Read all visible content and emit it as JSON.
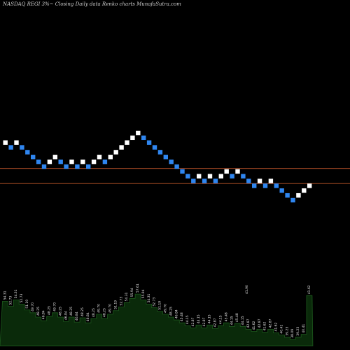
{
  "title": "NASDAQ REGI 3%~ Closing Daily data Renko charts MunafaSutra.com",
  "colors": {
    "background": "#000000",
    "up_brick": "#ffffff",
    "down_brick": "#2f86f0",
    "level_line": "#c0562a",
    "volume_fill": "#0a2a0a",
    "volume_stroke": "#1d5a1d"
  },
  "chart_data": [
    {
      "type": "renko",
      "title": "NASDAQ REGI 3%~ Closing Daily data Renko charts MunafaSutra.com",
      "bricks": [
        {
          "level": 54.31,
          "dir": "up"
        },
        {
          "level": 52.73,
          "dir": "down"
        },
        {
          "level": 54.31,
          "dir": "up"
        },
        {
          "level": 52.73,
          "dir": "down"
        },
        {
          "level": 51.19,
          "dir": "down"
        },
        {
          "level": 49.7,
          "dir": "down"
        },
        {
          "level": 48.25,
          "dir": "down"
        },
        {
          "level": 46.84,
          "dir": "down"
        },
        {
          "level": 48.25,
          "dir": "up"
        },
        {
          "level": 49.7,
          "dir": "up"
        },
        {
          "level": 48.25,
          "dir": "down"
        },
        {
          "level": 46.84,
          "dir": "down"
        },
        {
          "level": 48.25,
          "dir": "up"
        },
        {
          "level": 46.84,
          "dir": "down"
        },
        {
          "level": 48.25,
          "dir": "up"
        },
        {
          "level": 46.84,
          "dir": "down"
        },
        {
          "level": 48.25,
          "dir": "up"
        },
        {
          "level": 49.7,
          "dir": "up"
        },
        {
          "level": 48.25,
          "dir": "down"
        },
        {
          "level": 49.7,
          "dir": "up"
        },
        {
          "level": 51.19,
          "dir": "up"
        },
        {
          "level": 52.73,
          "dir": "up"
        },
        {
          "level": 54.31,
          "dir": "up"
        },
        {
          "level": 55.94,
          "dir": "up"
        },
        {
          "level": 57.61,
          "dir": "up"
        },
        {
          "level": 55.94,
          "dir": "down"
        },
        {
          "level": 54.31,
          "dir": "down"
        },
        {
          "level": 52.73,
          "dir": "down"
        },
        {
          "level": 51.19,
          "dir": "down"
        },
        {
          "level": 49.7,
          "dir": "down"
        },
        {
          "level": 48.25,
          "dir": "down"
        },
        {
          "level": 46.84,
          "dir": "down"
        },
        {
          "level": 45.48,
          "dir": "down"
        },
        {
          "level": 44.15,
          "dir": "down"
        },
        {
          "level": 42.87,
          "dir": "down"
        },
        {
          "level": 44.15,
          "dir": "up"
        },
        {
          "level": 42.87,
          "dir": "down"
        },
        {
          "level": 44.15,
          "dir": "up"
        },
        {
          "level": 42.87,
          "dir": "down"
        },
        {
          "level": 44.15,
          "dir": "up"
        },
        {
          "level": 45.48,
          "dir": "up"
        },
        {
          "level": 44.15,
          "dir": "down"
        },
        {
          "level": 45.48,
          "dir": "up"
        },
        {
          "level": 44.15,
          "dir": "down"
        },
        {
          "level": 42.87,
          "dir": "down"
        },
        {
          "level": 41.62,
          "dir": "down"
        },
        {
          "level": 42.87,
          "dir": "up"
        },
        {
          "level": 41.62,
          "dir": "down"
        },
        {
          "level": 42.87,
          "dir": "up"
        },
        {
          "level": 41.62,
          "dir": "down"
        },
        {
          "level": 40.41,
          "dir": "down"
        },
        {
          "level": 39.23,
          "dir": "down"
        },
        {
          "level": 38.09,
          "dir": "down"
        },
        {
          "level": 39.23,
          "dir": "up"
        },
        {
          "level": 40.41,
          "dir": "up"
        },
        {
          "level": 41.62,
          "dir": "up"
        }
      ],
      "reference_lines": [
        46.3,
        42.2
      ],
      "volume_labels": [
        "54.31",
        "52.73",
        "54.31",
        "52.73",
        "51.19",
        "49.70",
        "48.25",
        "46.84",
        "48.25",
        "49.70",
        "48.25",
        "46.84",
        "48.25",
        "46.84",
        "48.25",
        "46.84",
        "48.25",
        "49.70",
        "48.25",
        "49.70",
        "51.19",
        "52.73",
        "54.31",
        "55.94",
        "57.61",
        "55.94",
        "54.31",
        "52.73",
        "51.19",
        "49.70",
        "48.25",
        "46.84",
        "45.48",
        "44.15",
        "42.87",
        "44.15",
        "42.87",
        "44.15",
        "42.87",
        "44.15",
        "45.48",
        "44.15",
        "45.48",
        "44.15",
        "42.87",
        "41.62",
        "42.87",
        "41.62",
        "42.87",
        "41.62",
        "40.41",
        "39.23",
        "38.09",
        "39.23",
        "40.41",
        "41.62"
      ],
      "last_label": "41.90",
      "volume_values": [
        62,
        55,
        64,
        58,
        50,
        46,
        40,
        35,
        41,
        46,
        40,
        34,
        40,
        33,
        39,
        32,
        38,
        44,
        38,
        44,
        49,
        54,
        60,
        66,
        72,
        64,
        58,
        53,
        48,
        44,
        40,
        36,
        32,
        28,
        25,
        29,
        25,
        29,
        24,
        28,
        32,
        27,
        31,
        27,
        23,
        20,
        23,
        19,
        23,
        18,
        15,
        12,
        9,
        12,
        16,
        70
      ]
    }
  ]
}
